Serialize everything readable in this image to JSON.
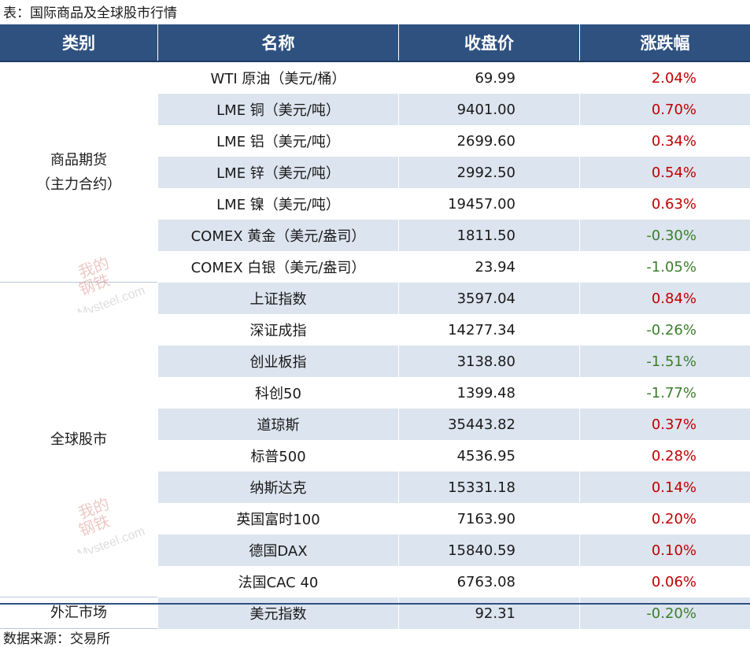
{
  "caption": "表：国际商品及全球股市行情",
  "source": "数据来源：交易所",
  "headers": [
    "类别",
    "名称",
    "收盘价",
    "涨跌幅"
  ],
  "categories": [
    {
      "lines": [
        "商品期货",
        "（主力合约）"
      ],
      "rows": 7
    },
    {
      "lines": [
        "全球股市"
      ],
      "rows": 10
    },
    {
      "lines": [
        "外汇市场"
      ],
      "rows": 1
    }
  ],
  "rows": [
    {
      "name": "WTI 原油（美元/桶）",
      "close": "69.99",
      "change": "2.04%",
      "dir": "up"
    },
    {
      "name": "LME 铜（美元/吨）",
      "close": "9401.00",
      "change": "0.70%",
      "dir": "up"
    },
    {
      "name": "LME 铝（美元/吨）",
      "close": "2699.60",
      "change": "0.34%",
      "dir": "up"
    },
    {
      "name": "LME 锌（美元/吨）",
      "close": "2992.50",
      "change": "0.54%",
      "dir": "up"
    },
    {
      "name": "LME 镍（美元/吨）",
      "close": "19457.00",
      "change": "0.63%",
      "dir": "up"
    },
    {
      "name": "COMEX 黄金（美元/盎司）",
      "close": "1811.50",
      "change": "-0.30%",
      "dir": "down"
    },
    {
      "name": "COMEX 白银（美元/盎司）",
      "close": "23.94",
      "change": "-1.05%",
      "dir": "down"
    },
    {
      "name": "上证指数",
      "close": "3597.04",
      "change": "0.84%",
      "dir": "up"
    },
    {
      "name": "深证成指",
      "close": "14277.34",
      "change": "-0.26%",
      "dir": "down"
    },
    {
      "name": "创业板指",
      "close": "3138.80",
      "change": "-1.51%",
      "dir": "down"
    },
    {
      "name": "科创50",
      "close": "1399.48",
      "change": "-1.77%",
      "dir": "down"
    },
    {
      "name": "道琼斯",
      "close": "35443.82",
      "change": "0.37%",
      "dir": "up"
    },
    {
      "name": "标普500",
      "close": "4536.95",
      "change": "0.28%",
      "dir": "up"
    },
    {
      "name": "纳斯达克",
      "close": "15331.18",
      "change": "0.14%",
      "dir": "up"
    },
    {
      "name": "英国富时100",
      "close": "7163.90",
      "change": "0.20%",
      "dir": "up"
    },
    {
      "name": "德国DAX",
      "close": "15840.59",
      "change": "0.10%",
      "dir": "up"
    },
    {
      "name": "法国CAC 40",
      "close": "6763.08",
      "change": "0.06%",
      "dir": "up"
    },
    {
      "name": "美元指数",
      "close": "92.31",
      "change": "-0.20%",
      "dir": "down"
    }
  ],
  "colors": {
    "header_bg": "#2e5180",
    "row_alt": "#dce4ef",
    "up": "#c00000",
    "down": "#3a7f2a"
  },
  "watermark": {
    "top": "我的",
    "bottom": "钢铁",
    "brand": "Mysteel.com"
  }
}
